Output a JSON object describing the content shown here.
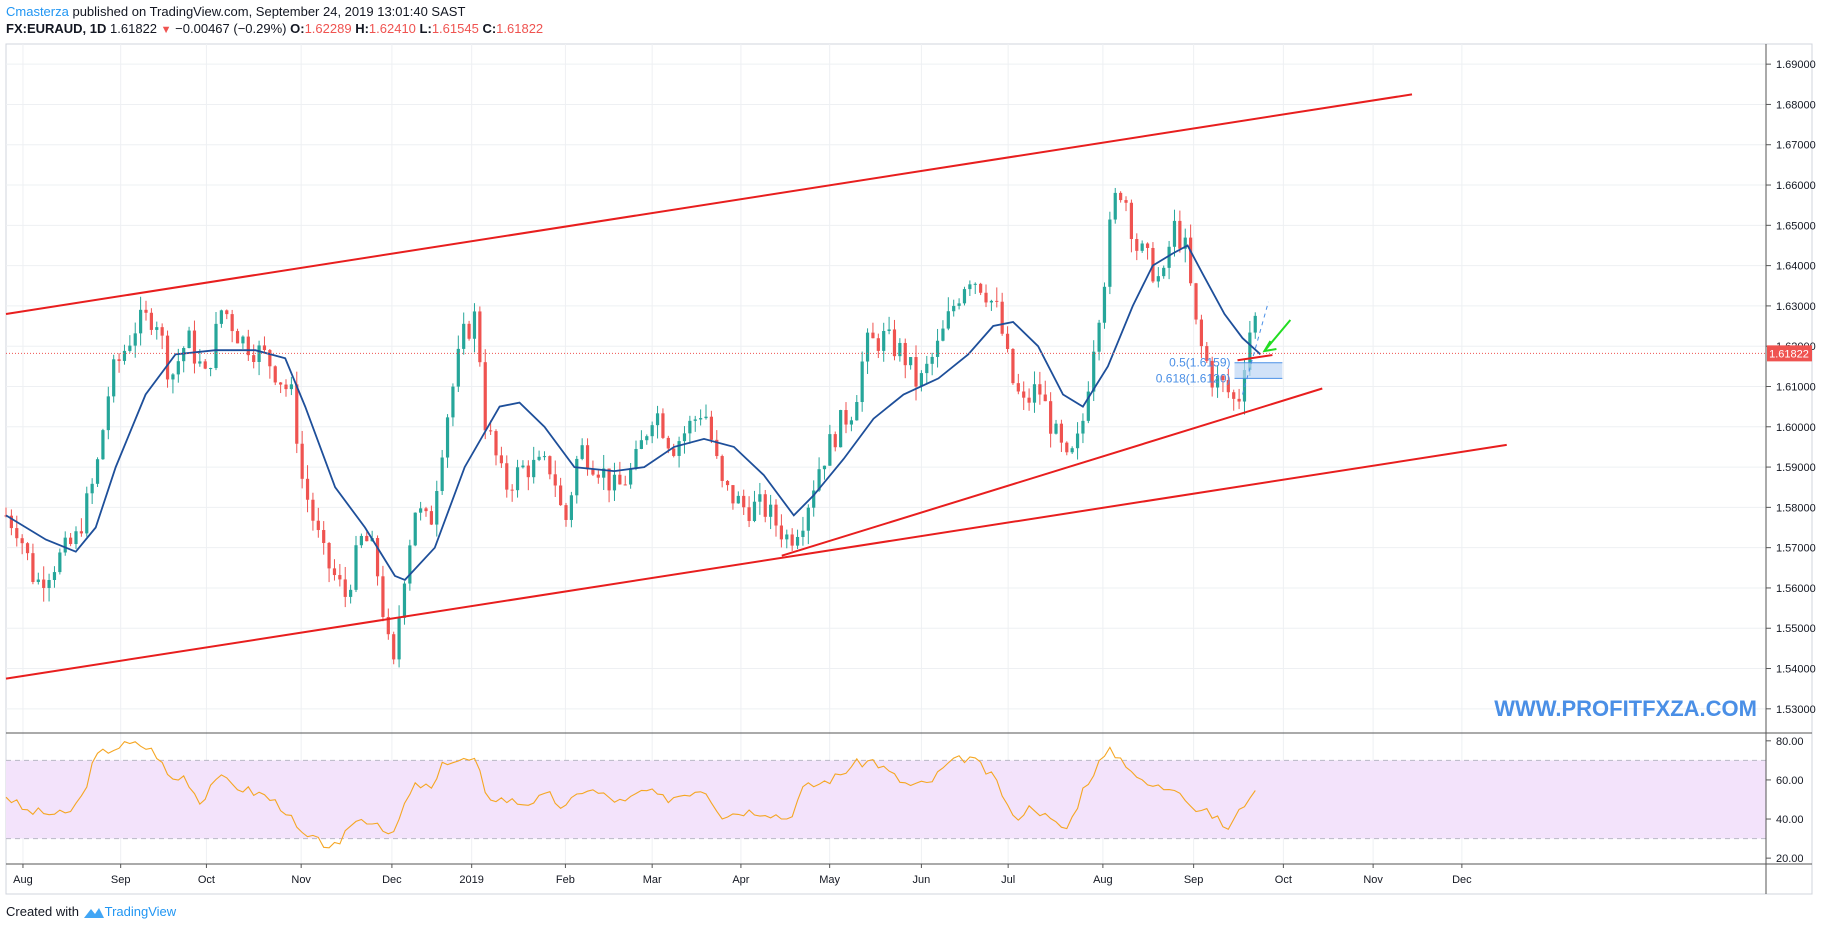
{
  "header": {
    "author": "Cmasterza",
    "published_text": " published on TradingView.com, September 24, 2019 13:01:40 SAST",
    "symbol": "FX:EURAUD, 1D",
    "last": "1.61822",
    "change": "−0.00467 (−0.29%)",
    "o_label": "O:",
    "o_value": "1.62289",
    "h_label": "H:",
    "h_value": "1.62410",
    "l_label": "L:",
    "l_value": "1.61545",
    "c_label": "C:",
    "c_value": "1.61822"
  },
  "footer": {
    "created_text": "Created with",
    "brand": "TradingView"
  },
  "watermark": "WWW.PROFITFXZA.COM",
  "colors": {
    "up": "#26a69a",
    "down": "#ef5350",
    "ma": "#1e4f9a",
    "channel": "#e81e1e",
    "rsi_line": "#f5a623",
    "rsi_band": "#f3e3fb",
    "arrow": "#22dd22",
    "fib": "#4a8fe6",
    "price_label_bg": "#ef5350",
    "watermark": "#4a8fe6"
  },
  "chart_data": [
    {
      "type": "candlestick",
      "title": "FX:EURAUD, 1D",
      "x_labels": [
        "Aug",
        "Sep",
        "Oct",
        "Nov",
        "Dec",
        "2019",
        "Feb",
        "Mar",
        "Apr",
        "May",
        "Jun",
        "Jul",
        "Aug",
        "Sep",
        "Oct",
        "Nov",
        "Dec"
      ],
      "y_ticks": [
        "1.53000",
        "1.54000",
        "1.55000",
        "1.56000",
        "1.57000",
        "1.58000",
        "1.59000",
        "1.60000",
        "1.61000",
        "1.62000",
        "1.63000",
        "1.64000",
        "1.65000",
        "1.66000",
        "1.67000",
        "1.68000",
        "1.69000"
      ],
      "ylim": [
        1.524,
        1.695
      ],
      "last_price_label": "1.61822",
      "last_price": 1.61822,
      "close_path": [
        [
          0,
          1.578
        ],
        [
          12,
          1.575
        ],
        [
          30,
          1.561
        ],
        [
          70,
          1.572
        ],
        [
          90,
          1.588
        ],
        [
          105,
          1.612
        ],
        [
          130,
          1.625
        ],
        [
          150,
          1.628
        ],
        [
          165,
          1.612
        ],
        [
          182,
          1.622
        ],
        [
          200,
          1.612
        ],
        [
          217,
          1.63
        ],
        [
          235,
          1.622
        ],
        [
          262,
          1.617
        ],
        [
          288,
          1.607
        ],
        [
          296,
          1.588
        ],
        [
          318,
          1.568
        ],
        [
          340,
          1.558
        ],
        [
          358,
          1.573
        ],
        [
          370,
          1.568
        ],
        [
          388,
          1.538
        ],
        [
          397,
          1.56
        ],
        [
          410,
          1.58
        ],
        [
          425,
          1.575
        ],
        [
          440,
          1.6
        ],
        [
          458,
          1.622
        ],
        [
          472,
          1.628
        ],
        [
          480,
          1.602
        ],
        [
          500,
          1.585
        ],
        [
          520,
          1.59
        ],
        [
          548,
          1.59
        ],
        [
          560,
          1.575
        ],
        [
          575,
          1.595
        ],
        [
          595,
          1.59
        ],
        [
          612,
          1.584
        ],
        [
          630,
          1.59
        ],
        [
          650,
          1.605
        ],
        [
          668,
          1.595
        ],
        [
          685,
          1.6
        ],
        [
          700,
          1.605
        ],
        [
          718,
          1.585
        ],
        [
          740,
          1.58
        ],
        [
          760,
          1.58
        ],
        [
          785,
          1.572
        ],
        [
          800,
          1.578
        ],
        [
          815,
          1.59
        ],
        [
          835,
          1.6
        ],
        [
          850,
          1.605
        ],
        [
          862,
          1.62
        ],
        [
          880,
          1.622
        ],
        [
          900,
          1.618
        ],
        [
          915,
          1.61
        ],
        [
          935,
          1.62
        ],
        [
          950,
          1.63
        ],
        [
          965,
          1.638
        ],
        [
          980,
          1.635
        ],
        [
          995,
          1.628
        ],
        [
          1008,
          1.612
        ],
        [
          1020,
          1.605
        ],
        [
          1035,
          1.61
        ],
        [
          1052,
          1.598
        ],
        [
          1065,
          1.59
        ],
        [
          1078,
          1.598
        ],
        [
          1090,
          1.62
        ],
        [
          1102,
          1.638
        ],
        [
          1110,
          1.655
        ],
        [
          1120,
          1.66
        ],
        [
          1133,
          1.645
        ],
        [
          1148,
          1.64
        ],
        [
          1160,
          1.635
        ],
        [
          1170,
          1.65
        ],
        [
          1182,
          1.645
        ],
        [
          1195,
          1.622
        ],
        [
          1210,
          1.612
        ],
        [
          1222,
          1.61
        ],
        [
          1235,
          1.605
        ],
        [
          1245,
          1.622
        ],
        [
          1252,
          1.628
        ],
        [
          1258,
          1.618
        ]
      ],
      "ma_path": [
        [
          0,
          1.578
        ],
        [
          40,
          1.572
        ],
        [
          70,
          1.569
        ],
        [
          90,
          1.575
        ],
        [
          110,
          1.59
        ],
        [
          140,
          1.608
        ],
        [
          170,
          1.618
        ],
        [
          210,
          1.619
        ],
        [
          250,
          1.619
        ],
        [
          280,
          1.617
        ],
        [
          300,
          1.605
        ],
        [
          330,
          1.585
        ],
        [
          360,
          1.575
        ],
        [
          390,
          1.563
        ],
        [
          400,
          1.562
        ],
        [
          430,
          1.57
        ],
        [
          460,
          1.59
        ],
        [
          495,
          1.605
        ],
        [
          515,
          1.606
        ],
        [
          540,
          1.6
        ],
        [
          570,
          1.59
        ],
        [
          610,
          1.589
        ],
        [
          640,
          1.59
        ],
        [
          670,
          1.595
        ],
        [
          700,
          1.597
        ],
        [
          730,
          1.595
        ],
        [
          760,
          1.588
        ],
        [
          790,
          1.578
        ],
        [
          810,
          1.583
        ],
        [
          840,
          1.592
        ],
        [
          870,
          1.602
        ],
        [
          900,
          1.608
        ],
        [
          935,
          1.612
        ],
        [
          965,
          1.618
        ],
        [
          990,
          1.625
        ],
        [
          1010,
          1.626
        ],
        [
          1035,
          1.62
        ],
        [
          1060,
          1.608
        ],
        [
          1080,
          1.605
        ],
        [
          1105,
          1.615
        ],
        [
          1130,
          1.63
        ],
        [
          1150,
          1.64
        ],
        [
          1170,
          1.643
        ],
        [
          1185,
          1.645
        ],
        [
          1200,
          1.638
        ],
        [
          1222,
          1.628
        ],
        [
          1240,
          1.622
        ],
        [
          1258,
          1.618
        ]
      ],
      "channel_lines": [
        {
          "p1": [
            0,
            1.628
          ],
          "p2": [
            1410,
            1.6825
          ]
        },
        {
          "p1": [
            0,
            1.5375
          ],
          "p2": [
            1505,
            1.5955
          ]
        },
        {
          "p1": [
            778,
            1.568
          ],
          "p2": [
            1320,
            1.6095
          ]
        },
        {
          "p1": [
            1235,
            1.6165
          ],
          "p2": [
            1270,
            1.6178
          ]
        }
      ],
      "fib_levels": [
        {
          "label": "0.5(1.6159)",
          "price": 1.6159
        },
        {
          "label": "0.618(1.6120)",
          "price": 1.612
        }
      ],
      "watermark": "WWW.PROFITFXZA.COM"
    },
    {
      "type": "line",
      "title": "RSI",
      "y_ticks": [
        "20.00",
        "40.00",
        "60.00",
        "80.00"
      ],
      "ylim": [
        17,
        84
      ],
      "band": [
        30,
        70
      ],
      "rsi_path": [
        [
          0,
          52
        ],
        [
          20,
          44
        ],
        [
          40,
          43
        ],
        [
          60,
          42
        ],
        [
          75,
          50
        ],
        [
          90,
          72
        ],
        [
          105,
          76
        ],
        [
          120,
          78
        ],
        [
          135,
          78
        ],
        [
          150,
          74
        ],
        [
          165,
          60
        ],
        [
          180,
          62
        ],
        [
          195,
          48
        ],
        [
          210,
          62
        ],
        [
          225,
          58
        ],
        [
          240,
          55
        ],
        [
          260,
          52
        ],
        [
          280,
          45
        ],
        [
          295,
          32
        ],
        [
          315,
          28
        ],
        [
          335,
          25
        ],
        [
          345,
          38
        ],
        [
          360,
          40
        ],
        [
          375,
          38
        ],
        [
          388,
          30
        ],
        [
          398,
          46
        ],
        [
          412,
          58
        ],
        [
          428,
          55
        ],
        [
          440,
          70
        ],
        [
          458,
          70
        ],
        [
          472,
          70
        ],
        [
          480,
          52
        ],
        [
          500,
          50
        ],
        [
          520,
          48
        ],
        [
          545,
          52
        ],
        [
          560,
          45
        ],
        [
          580,
          56
        ],
        [
          600,
          52
        ],
        [
          620,
          48
        ],
        [
          640,
          55
        ],
        [
          660,
          50
        ],
        [
          680,
          53
        ],
        [
          700,
          56
        ],
        [
          718,
          42
        ],
        [
          740,
          44
        ],
        [
          760,
          44
        ],
        [
          785,
          40
        ],
        [
          800,
          56
        ],
        [
          815,
          58
        ],
        [
          835,
          62
        ],
        [
          850,
          68
        ],
        [
          870,
          70
        ],
        [
          890,
          62
        ],
        [
          905,
          57
        ],
        [
          925,
          58
        ],
        [
          945,
          68
        ],
        [
          965,
          72
        ],
        [
          980,
          66
        ],
        [
          995,
          58
        ],
        [
          1010,
          40
        ],
        [
          1030,
          47
        ],
        [
          1050,
          38
        ],
        [
          1065,
          35
        ],
        [
          1080,
          55
        ],
        [
          1095,
          68
        ],
        [
          1108,
          75
        ],
        [
          1125,
          68
        ],
        [
          1140,
          58
        ],
        [
          1160,
          56
        ],
        [
          1175,
          57
        ],
        [
          1190,
          46
        ],
        [
          1210,
          42
        ],
        [
          1225,
          35
        ],
        [
          1235,
          42
        ],
        [
          1250,
          55
        ],
        [
          1258,
          48
        ]
      ]
    }
  ]
}
